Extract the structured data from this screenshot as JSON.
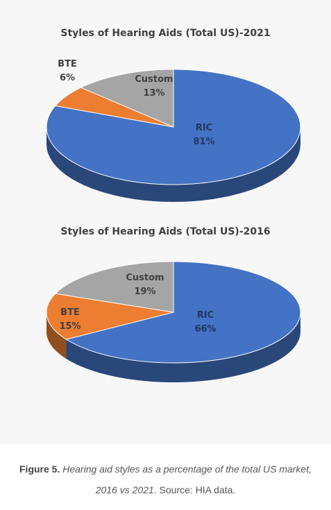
{
  "chart_data": [
    {
      "type": "pie",
      "title": "Styles of Hearing Aids (Total US)-2021",
      "slices": [
        {
          "label": "RIC",
          "value": 81,
          "value_label": "81%",
          "color": "#4472c4"
        },
        {
          "label": "BTE",
          "value": 6,
          "value_label": "6%",
          "color": "#ed7d31"
        },
        {
          "label": "Custom",
          "value": 13,
          "value_label": "13%",
          "color": "#a5a5a5"
        }
      ]
    },
    {
      "type": "pie",
      "title": "Styles of Hearing Aids (Total US)-2016",
      "slices": [
        {
          "label": "RIC",
          "value": 66,
          "value_label": "66%",
          "color": "#4472c4"
        },
        {
          "label": "BTE",
          "value": 15,
          "value_label": "15%",
          "color": "#ed7d31"
        },
        {
          "label": "Custom",
          "value": 19,
          "value_label": "19%",
          "color": "#a5a5a5"
        }
      ]
    }
  ],
  "caption": {
    "figure_label": "Figure 5.",
    "text_italic_1": "Hearing aid styles as a percentage of the total US market,",
    "text_italic_2": "2016 vs 2021",
    "source": ". Source: HIA data."
  }
}
